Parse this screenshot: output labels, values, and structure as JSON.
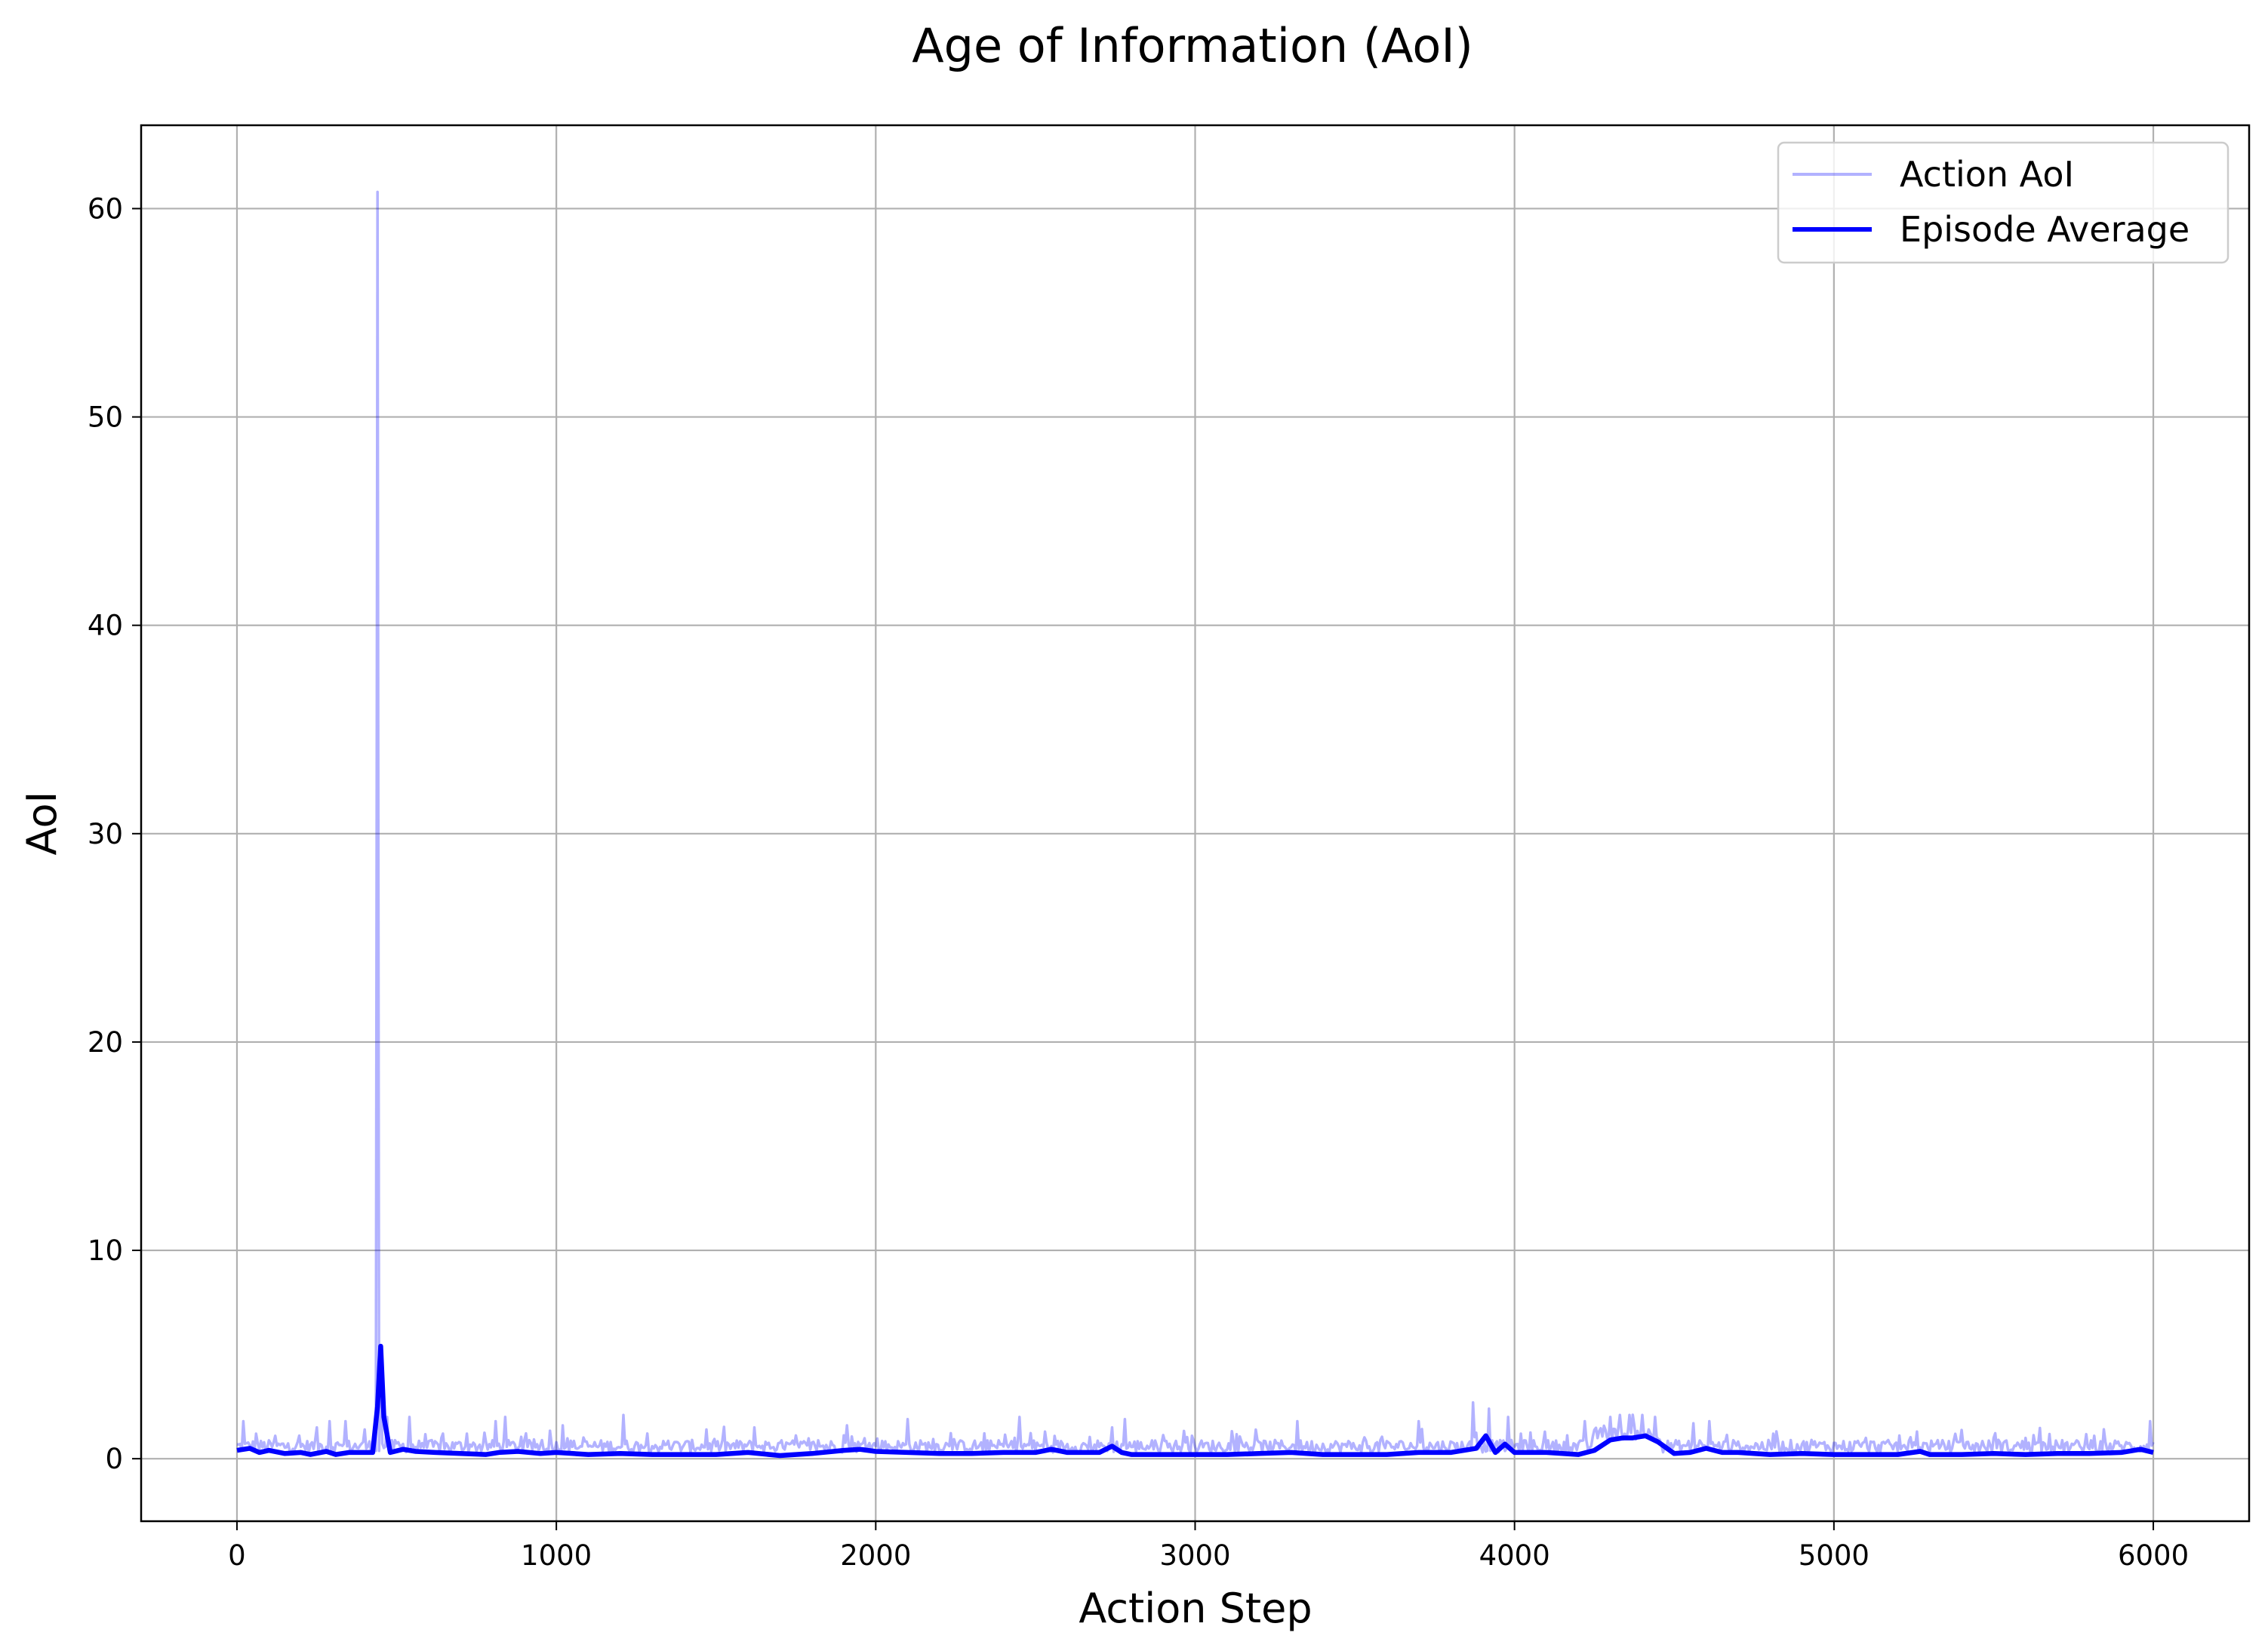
{
  "chart_data": {
    "type": "line",
    "title": "Age of Information (AoI)",
    "xlabel": "Action Step",
    "ylabel": "AoI",
    "xlim": [
      -300,
      6300
    ],
    "ylim": [
      -3,
      64
    ],
    "xticks": [
      0,
      1000,
      2000,
      3000,
      4000,
      5000,
      6000
    ],
    "yticks": [
      0,
      10,
      20,
      30,
      40,
      50,
      60
    ],
    "grid": true,
    "legend_position": "top-right",
    "series": [
      {
        "name": "Action AoI",
        "color": "#0000ff",
        "opacity": 0.3,
        "baseline": 0.3,
        "spikes": [
          [
            20,
            1.8
          ],
          [
            60,
            1.2
          ],
          [
            120,
            1.1
          ],
          [
            250,
            1.5
          ],
          [
            290,
            1.8
          ],
          [
            340,
            1.8
          ],
          [
            400,
            1.4
          ],
          [
            430,
            1.2
          ],
          [
            441,
            60.8
          ],
          [
            450,
            5.3
          ],
          [
            470,
            2.0
          ],
          [
            540,
            2.0
          ],
          [
            640,
            1.0
          ],
          [
            720,
            1.2
          ],
          [
            810,
            1.8
          ],
          [
            840,
            2.0
          ],
          [
            1020,
            1.6
          ],
          [
            1210,
            2.1
          ],
          [
            1470,
            1.4
          ],
          [
            1620,
            1.5
          ],
          [
            1910,
            1.6
          ],
          [
            2100,
            1.9
          ],
          [
            2450,
            2.0
          ],
          [
            2530,
            1.3
          ],
          [
            2740,
            1.5
          ],
          [
            2780,
            1.9
          ],
          [
            2990,
            1.1
          ],
          [
            3320,
            1.8
          ],
          [
            3700,
            1.8
          ],
          [
            3870,
            2.7
          ],
          [
            3920,
            2.4
          ],
          [
            3980,
            2.0
          ],
          [
            4020,
            1.2
          ],
          [
            4220,
            1.8
          ],
          [
            4300,
            2.0
          ],
          [
            4330,
            2.1
          ],
          [
            4360,
            2.1
          ],
          [
            4400,
            2.1
          ],
          [
            4440,
            2.0
          ],
          [
            4560,
            1.7
          ],
          [
            4610,
            1.8
          ],
          [
            4810,
            1.2
          ],
          [
            4930,
            0.9
          ],
          [
            5100,
            1.0
          ],
          [
            5260,
            1.3
          ],
          [
            5500,
            1.0
          ],
          [
            5600,
            1.0
          ],
          [
            5990,
            1.8
          ]
        ]
      },
      {
        "name": "Episode Average",
        "color": "#0000ff",
        "opacity": 1.0,
        "x": [
          0,
          40,
          70,
          100,
          150,
          200,
          230,
          280,
          310,
          350,
          400,
          425,
          440,
          450,
          460,
          480,
          520,
          560,
          620,
          700,
          780,
          820,
          880,
          950,
          1000,
          1100,
          1200,
          1300,
          1400,
          1500,
          1600,
          1700,
          1800,
          1900,
          1950,
          2000,
          2100,
          2200,
          2300,
          2400,
          2500,
          2550,
          2600,
          2700,
          2740,
          2770,
          2800,
          2900,
          3000,
          3100,
          3200,
          3300,
          3400,
          3500,
          3600,
          3700,
          3800,
          3880,
          3910,
          3940,
          3970,
          4000,
          4100,
          4200,
          4250,
          4300,
          4340,
          4370,
          4410,
          4450,
          4500,
          4550,
          4600,
          4650,
          4700,
          4800,
          4900,
          5000,
          5100,
          5200,
          5270,
          5300,
          5400,
          5500,
          5600,
          5700,
          5800,
          5900,
          5960,
          6000
        ],
        "y": [
          0.4,
          0.5,
          0.3,
          0.4,
          0.25,
          0.3,
          0.2,
          0.35,
          0.2,
          0.3,
          0.3,
          0.3,
          2.5,
          5.4,
          2.0,
          0.3,
          0.45,
          0.35,
          0.3,
          0.25,
          0.2,
          0.3,
          0.35,
          0.25,
          0.3,
          0.2,
          0.25,
          0.2,
          0.2,
          0.2,
          0.3,
          0.15,
          0.25,
          0.4,
          0.45,
          0.35,
          0.3,
          0.25,
          0.25,
          0.3,
          0.3,
          0.45,
          0.3,
          0.3,
          0.6,
          0.3,
          0.2,
          0.2,
          0.2,
          0.2,
          0.25,
          0.3,
          0.2,
          0.2,
          0.2,
          0.3,
          0.3,
          0.5,
          1.1,
          0.3,
          0.7,
          0.3,
          0.3,
          0.2,
          0.4,
          0.9,
          1.0,
          1.0,
          1.1,
          0.8,
          0.25,
          0.3,
          0.5,
          0.3,
          0.3,
          0.2,
          0.25,
          0.2,
          0.2,
          0.2,
          0.35,
          0.2,
          0.2,
          0.25,
          0.2,
          0.25,
          0.25,
          0.3,
          0.45,
          0.3
        ]
      }
    ]
  }
}
